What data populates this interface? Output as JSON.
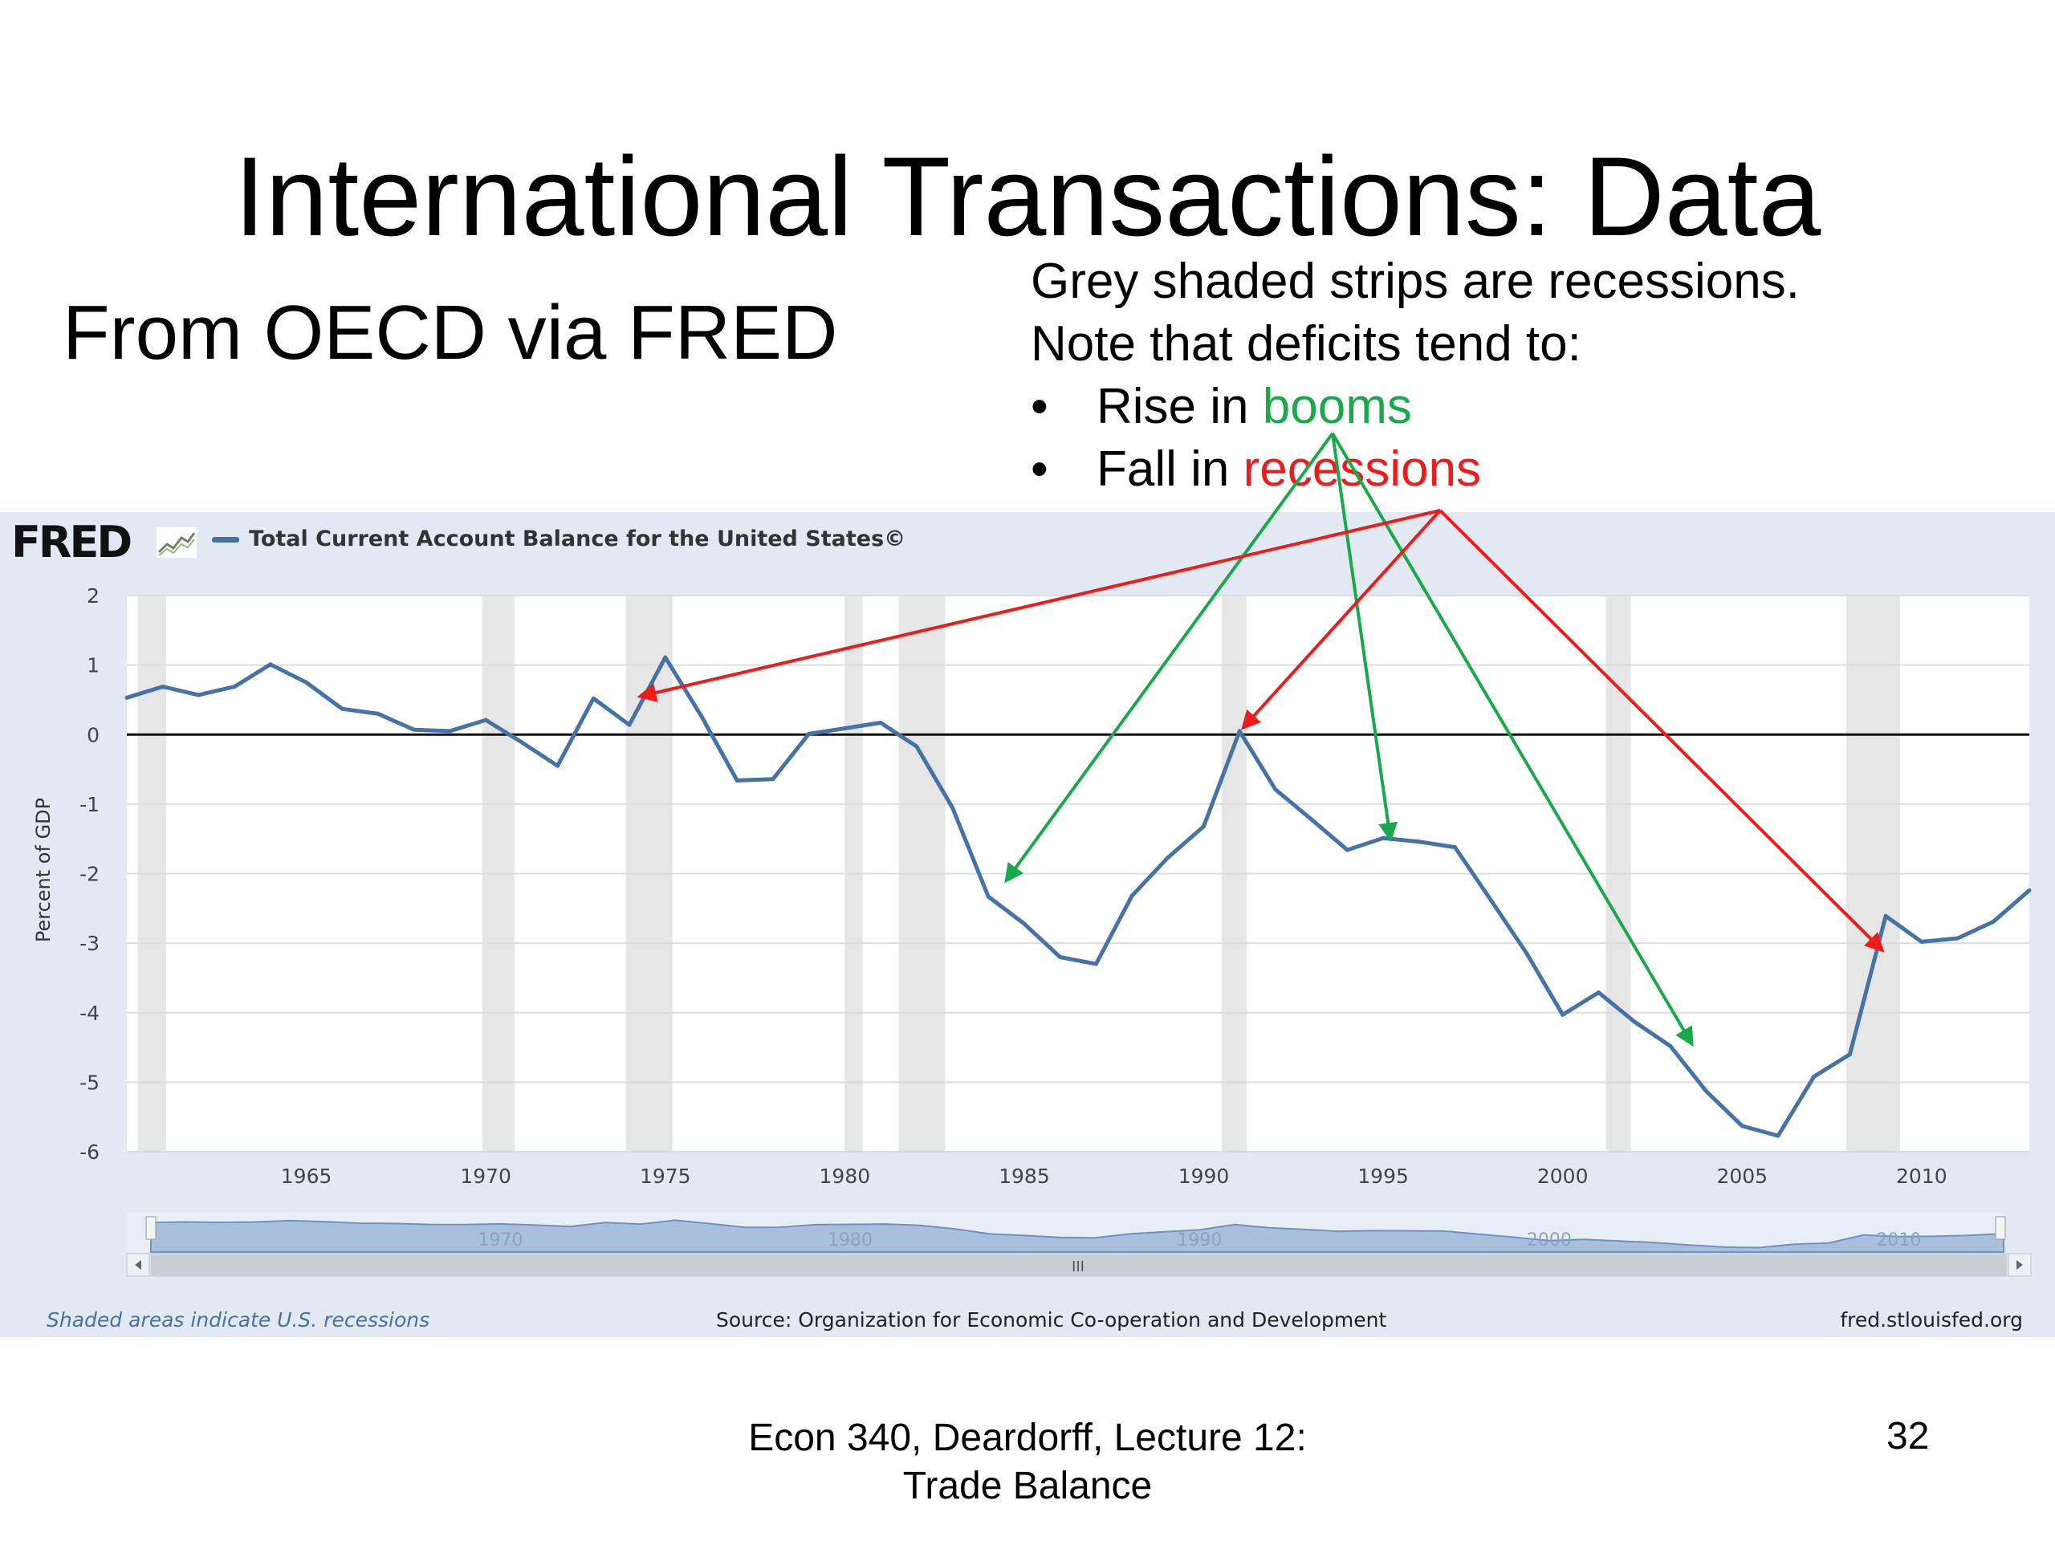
{
  "slide": {
    "title": "International Transactions:  Data",
    "subtitle": "From OECD via FRED",
    "note_line1": "Grey shaded strips are recessions.",
    "note_line2": "Note that deficits tend to:",
    "bullet1_prefix": "Rise in ",
    "bullet1_word": "booms",
    "bullet2_prefix": "Fall in ",
    "bullet2_word": "recessions",
    "bullet_symbol": "•",
    "footer": "Econ 340, Deardorff, Lecture 12: Trade Balance",
    "page_number": "32"
  },
  "fred": {
    "logo": "FRED",
    "legend": "Total Current Account Balance for the United States©",
    "ylabel": "Percent of GDP",
    "shaded_note": "Shaded areas indicate U.S. recessions",
    "source": "Source: Organization for Economic Co-operation and Development",
    "site": "fred.stlouisfed.org",
    "navigator_labels": [
      "1970",
      "1980",
      "1990",
      "2000",
      "2010"
    ],
    "scroll_glyph": "III"
  },
  "colors": {
    "line": "#4572a7",
    "recession": "#e6e6e6",
    "arrow_boom": "#19a84a",
    "arrow_recession": "#ee1b1b",
    "panel": "#e3e9f2"
  },
  "chart_data": {
    "type": "line",
    "title": "",
    "xlabel": "",
    "ylabel": "Percent of GDP",
    "xlim": [
      1960,
      2013
    ],
    "ylim": [
      -6,
      2
    ],
    "yticks": [
      2,
      1,
      0,
      -1,
      -2,
      -3,
      -4,
      -5,
      -6
    ],
    "xticks": [
      1965,
      1970,
      1975,
      1980,
      1985,
      1990,
      1995,
      2000,
      2005,
      2010
    ],
    "grid": true,
    "legend_placement": "top-left",
    "series": [
      {
        "name": "Total Current Account Balance for the United States©",
        "x": [
          1960,
          1961,
          1962,
          1963,
          1964,
          1965,
          1966,
          1967,
          1968,
          1969,
          1970,
          1971,
          1972,
          1973,
          1974,
          1975,
          1976,
          1977,
          1978,
          1979,
          1980,
          1981,
          1982,
          1983,
          1984,
          1985,
          1986,
          1987,
          1988,
          1989,
          1990,
          1991,
          1992,
          1993,
          1994,
          1995,
          1996,
          1997,
          1998,
          1999,
          2000,
          2001,
          2002,
          2003,
          2004,
          2005,
          2006,
          2007,
          2008,
          2009,
          2010,
          2011,
          2012,
          2013
        ],
        "y": [
          0.53,
          0.69,
          0.57,
          0.69,
          1.01,
          0.75,
          0.37,
          0.3,
          0.07,
          0.05,
          0.21,
          -0.11,
          -0.45,
          0.52,
          0.14,
          1.11,
          0.27,
          -0.66,
          -0.64,
          0.01,
          0.09,
          0.17,
          -0.17,
          -1.05,
          -2.33,
          -2.72,
          -3.2,
          -3.3,
          -2.32,
          -1.77,
          -1.32,
          0.05,
          -0.79,
          -1.22,
          -1.66,
          -1.49,
          -1.54,
          -1.62,
          -2.38,
          -3.15,
          -4.03,
          -3.71,
          -4.13,
          -4.48,
          -5.13,
          -5.63,
          -5.77,
          -4.92,
          -4.6,
          -2.61,
          -2.98,
          -2.93,
          -2.69,
          -2.24
        ]
      }
    ],
    "recessions": [
      [
        1960.3,
        1961.1
      ],
      [
        1969.9,
        1970.8
      ],
      [
        1973.9,
        1975.2
      ],
      [
        1980.0,
        1980.5
      ],
      [
        1981.5,
        1982.8
      ],
      [
        1990.5,
        1991.2
      ],
      [
        2001.2,
        2001.9
      ],
      [
        2007.9,
        2009.4
      ]
    ],
    "annotations": {
      "boom_source_word": "booms",
      "boom_targets": [
        [
          1984.5,
          -2.1
        ],
        [
          1995.2,
          -1.5
        ],
        [
          2003.6,
          -4.45
        ]
      ],
      "recession_source_word": "recessions",
      "recession_targets": [
        [
          1974.3,
          0.55
        ],
        [
          1991.1,
          0.1
        ],
        [
          2008.9,
          -3.1
        ]
      ]
    }
  }
}
